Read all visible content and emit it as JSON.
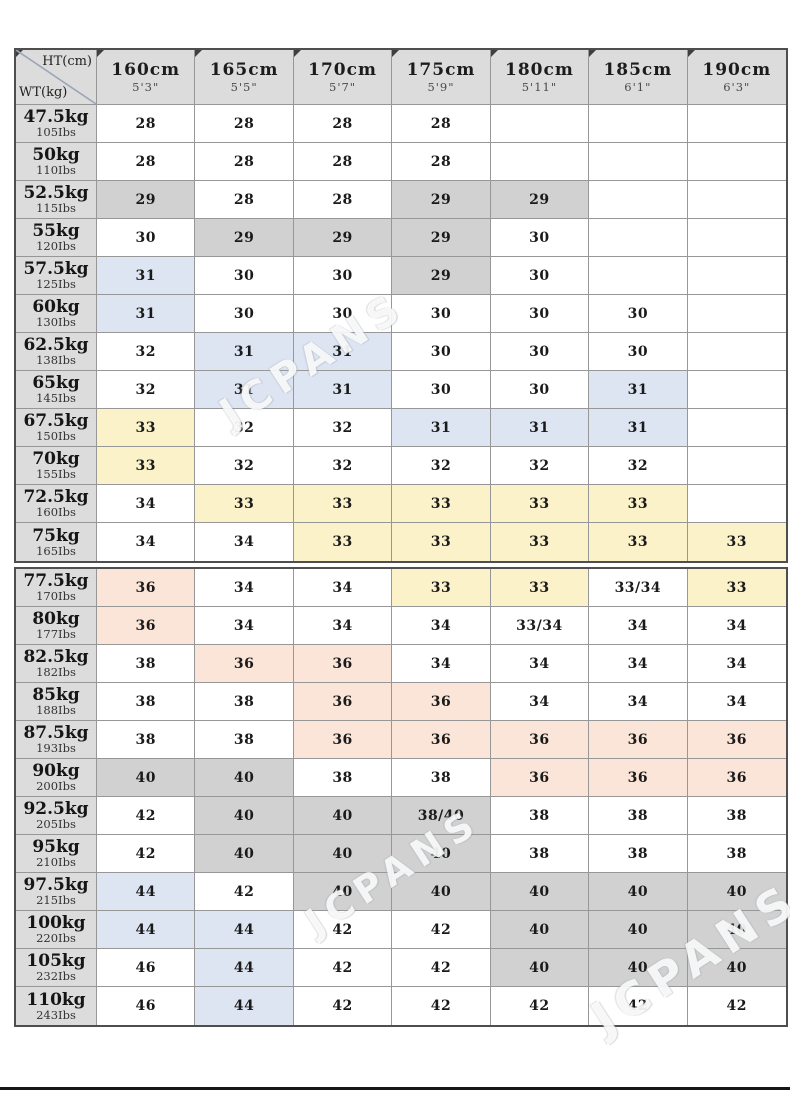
{
  "watermark": {
    "text": "JCPANS"
  },
  "chart_data": {
    "type": "table",
    "title": "",
    "corner": {
      "top_label": "HT(cm)",
      "bottom_label": "WT(kg)"
    },
    "columns": [
      {
        "cm": "160cm",
        "ft": "5'3\""
      },
      {
        "cm": "165cm",
        "ft": "5'5\""
      },
      {
        "cm": "170cm",
        "ft": "5'7\""
      },
      {
        "cm": "175cm",
        "ft": "5'9\""
      },
      {
        "cm": "180cm",
        "ft": "5'11\""
      },
      {
        "cm": "185cm",
        "ft": "6'1\""
      },
      {
        "cm": "190cm",
        "ft": "6'3\""
      }
    ],
    "cell_colors": {
      "w": "#ffffff",
      "g": "#d1d1d1",
      "b": "#dde4f2",
      "y": "#fbf2ca",
      "p": "#fae5d8"
    },
    "header_bg": "#dcdcdc",
    "border_color": "#979797",
    "rows": [
      {
        "kg": "47.5kg",
        "lbs": "105Ibs",
        "cells": [
          "28|w",
          "28|w",
          "28|w",
          "28|w",
          "|w",
          "|w",
          "|w"
        ]
      },
      {
        "kg": "50kg",
        "lbs": "110Ibs",
        "cells": [
          "28|w",
          "28|w",
          "28|w",
          "28|w",
          "|w",
          "|w",
          "|w"
        ]
      },
      {
        "kg": "52.5kg",
        "lbs": "115Ibs",
        "cells": [
          "29|g",
          "28|w",
          "28|w",
          "29|g",
          "29|g",
          "|w",
          "|w"
        ]
      },
      {
        "kg": "55kg",
        "lbs": "120Ibs",
        "cells": [
          "30|w",
          "29|g",
          "29|g",
          "29|g",
          "30|w",
          "|w",
          "|w"
        ]
      },
      {
        "kg": "57.5kg",
        "lbs": "125Ibs",
        "cells": [
          "31|b",
          "30|w",
          "30|w",
          "29|g",
          "30|w",
          "|w",
          "|w"
        ]
      },
      {
        "kg": "60kg",
        "lbs": "130Ibs",
        "cells": [
          "31|b",
          "30|w",
          "30|w",
          "30|w",
          "30|w",
          "30|w",
          "|w"
        ]
      },
      {
        "kg": "62.5kg",
        "lbs": "138Ibs",
        "cells": [
          "32|w",
          "31|b",
          "31|b",
          "30|w",
          "30|w",
          "30|w",
          "|w"
        ]
      },
      {
        "kg": "65kg",
        "lbs": "145Ibs",
        "cells": [
          "32|w",
          "31|b",
          "31|b",
          "30|w",
          "30|w",
          "31|b",
          "|w"
        ]
      },
      {
        "kg": "67.5kg",
        "lbs": "150Ibs",
        "cells": [
          "33|y",
          "32|w",
          "32|w",
          "31|b",
          "31|b",
          "31|b",
          "|w"
        ]
      },
      {
        "kg": "70kg",
        "lbs": "155Ibs",
        "cells": [
          "33|y",
          "32|w",
          "32|w",
          "32|w",
          "32|w",
          "32|w",
          "|w"
        ]
      },
      {
        "kg": "72.5kg",
        "lbs": "160Ibs",
        "cells": [
          "34|w",
          "33|y",
          "33|y",
          "33|y",
          "33|y",
          "33|y",
          "|w"
        ]
      },
      {
        "kg": "75kg",
        "lbs": "165Ibs",
        "cells": [
          "34|w",
          "34|w",
          "33|y",
          "33|y",
          "33|y",
          "33|y",
          "33|y"
        ]
      },
      {
        "kg": "77.5kg",
        "lbs": "170Ibs",
        "cells": [
          "36|p",
          "34|w",
          "34|w",
          "33|y",
          "33|y",
          "33/34|w",
          "33|y"
        ]
      },
      {
        "kg": "80kg",
        "lbs": "177Ibs",
        "cells": [
          "36|p",
          "34|w",
          "34|w",
          "34|w",
          "33/34|w",
          "34|w",
          "34|w"
        ]
      },
      {
        "kg": "82.5kg",
        "lbs": "182Ibs",
        "cells": [
          "38|w",
          "36|p",
          "36|p",
          "34|w",
          "34|w",
          "34|w",
          "34|w"
        ]
      },
      {
        "kg": "85kg",
        "lbs": "188Ibs",
        "cells": [
          "38|w",
          "38|w",
          "36|p",
          "36|p",
          "34|w",
          "34|w",
          "34|w"
        ]
      },
      {
        "kg": "87.5kg",
        "lbs": "193Ibs",
        "cells": [
          "38|w",
          "38|w",
          "36|p",
          "36|p",
          "36|p",
          "36|p",
          "36|p"
        ]
      },
      {
        "kg": "90kg",
        "lbs": "200Ibs",
        "cells": [
          "40|g",
          "40|g",
          "38|w",
          "38|w",
          "36|p",
          "36|p",
          "36|p"
        ]
      },
      {
        "kg": "92.5kg",
        "lbs": "205Ibs",
        "cells": [
          "42|w",
          "40|g",
          "40|g",
          "38/40|g",
          "38|w",
          "38|w",
          "38|w"
        ]
      },
      {
        "kg": "95kg",
        "lbs": "210Ibs",
        "cells": [
          "42|w",
          "40|g",
          "40|g",
          "40|g",
          "38|w",
          "38|w",
          "38|w"
        ]
      },
      {
        "kg": "97.5kg",
        "lbs": "215Ibs",
        "cells": [
          "44|b",
          "42|w",
          "40|g",
          "40|g",
          "40|g",
          "40|g",
          "40|g"
        ]
      },
      {
        "kg": "100kg",
        "lbs": "220Ibs",
        "cells": [
          "44|b",
          "44|b",
          "42|w",
          "42|w",
          "40|g",
          "40|g",
          "40|g"
        ]
      },
      {
        "kg": "105kg",
        "lbs": "232Ibs",
        "cells": [
          "46|w",
          "44|b",
          "42|w",
          "42|w",
          "40|g",
          "40|g",
          "40|g"
        ]
      },
      {
        "kg": "110kg",
        "lbs": "243Ibs",
        "cells": [
          "46|w",
          "44|b",
          "42|w",
          "42|w",
          "42|w",
          "42|w",
          "42|w"
        ]
      }
    ]
  }
}
